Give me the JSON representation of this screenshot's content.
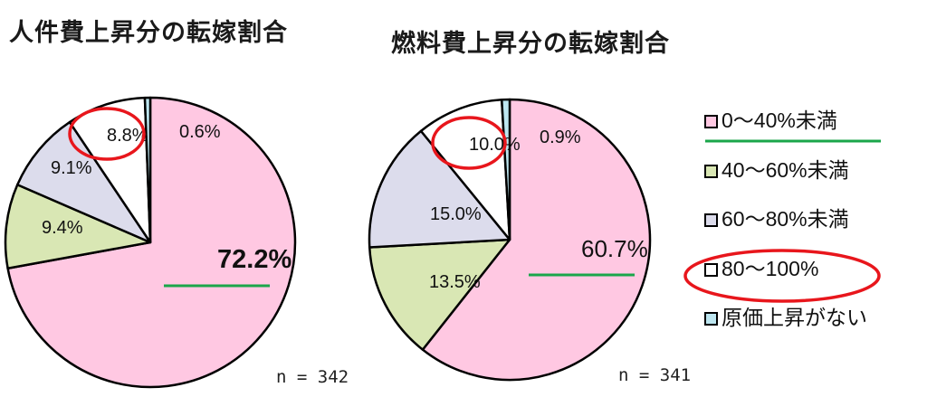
{
  "chart_data": [
    {
      "type": "pie",
      "title": "人件費上昇分の転嫁割合",
      "n_label": "n = 342",
      "categories": [
        "0～40%未満",
        "40～60%未満",
        "60～80%未満",
        "80～100%",
        "原価上昇がない"
      ],
      "values": [
        72.2,
        9.4,
        9.1,
        8.8,
        0.6
      ],
      "labels": [
        "72.2%",
        "9.4%",
        "9.1%",
        "8.8%",
        "0.6%"
      ],
      "start": "12 o'clock, clockwise",
      "annotations": {
        "circled": "8.8%",
        "underlined": "72.2%"
      }
    },
    {
      "type": "pie",
      "title": "燃料費上昇分の転嫁割合",
      "n_label": "n = 341",
      "categories": [
        "0～40%未満",
        "40～60%未満",
        "60～80%未満",
        "80～100%",
        "原価上昇がない"
      ],
      "values": [
        60.7,
        13.5,
        15.0,
        10.0,
        0.9
      ],
      "labels": [
        "60.7%",
        "13.5%",
        "15.0%",
        "10.0%",
        "0.9%"
      ],
      "start": "12 o'clock, clockwise",
      "annotations": {
        "circled": "10.0%",
        "underlined": "60.7%"
      }
    }
  ],
  "legend": {
    "position": "right",
    "items": [
      {
        "label": "0～40%未満",
        "color": "#ffc8e2",
        "underlined": true
      },
      {
        "label": "40～60%未満",
        "color": "#d9e7b4"
      },
      {
        "label": "60～80%未満",
        "color": "#dcdcec"
      },
      {
        "label": "80～100%",
        "color": "#ffffff",
        "circled": true
      },
      {
        "label": "原価上昇がない",
        "color": "#bde6f0"
      }
    ]
  },
  "colors": {
    "highlight_circle": "#e8161c",
    "underline": "#1aa64a",
    "outline": "#000000"
  }
}
